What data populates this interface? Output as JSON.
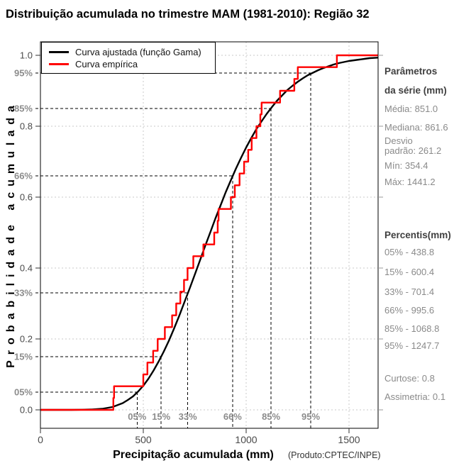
{
  "title": "Distribuição acumulada no trimestre MAM (1981-2010): Região 32",
  "footer_note": "(Produto:CPTEC/INPE)",
  "legend": {
    "items": [
      {
        "label": "Curva ajustada (função Gama)",
        "color": "#000000"
      },
      {
        "label": "Curva empírica",
        "color": "#ff0000"
      }
    ]
  },
  "sidebar": {
    "params_heading_line1": "Parâmetros",
    "params_heading_line2": "da série (mm)",
    "stats": {
      "media": "Média: 851.0",
      "mediana": "Mediana: 861.6",
      "desvio_line1": "Desvio",
      "desvio_line2": "padrão: 261.2",
      "min": "Mín: 354.4",
      "max": "Máx: 1441.2"
    },
    "percentis_heading": "Percentis(mm)",
    "percentis": [
      "05% - 438.8",
      "15% - 600.4",
      "33% - 701.4",
      "66% - 995.6",
      "85% - 1068.8",
      "95% - 1247.7"
    ],
    "curtose": "Curtose: 0.8",
    "assimetria": "Assimetria: 0.1"
  },
  "chart_data": {
    "type": "line",
    "title": "Distribuição acumulada no trimestre MAM (1981-2010): Região 32",
    "xlabel": "Precipitação acumulada (mm)",
    "ylabel": "Probabilidade acumulada",
    "xlim": [
      0,
      1645
    ],
    "ylim": [
      0,
      1.0
    ],
    "x_ticks": [
      0,
      500,
      1000,
      1500
    ],
    "y_ticks": [
      0.0,
      0.2,
      0.4,
      0.6,
      0.8,
      1.0
    ],
    "grid": true,
    "legend_position": "top-left",
    "series": [
      {
        "name": "Curva ajustada (função Gama)",
        "type": "smooth_cdf",
        "color": "#000000",
        "points": [
          [
            0,
            0
          ],
          [
            150,
            0.0001
          ],
          [
            200,
            0.0005
          ],
          [
            250,
            0.0013
          ],
          [
            300,
            0.003
          ],
          [
            350,
            0.008
          ],
          [
            400,
            0.019
          ],
          [
            425,
            0.028
          ],
          [
            450,
            0.038
          ],
          [
            475,
            0.052
          ],
          [
            500,
            0.068
          ],
          [
            525,
            0.088
          ],
          [
            550,
            0.111
          ],
          [
            575,
            0.137
          ],
          [
            600,
            0.165
          ],
          [
            625,
            0.196
          ],
          [
            650,
            0.23
          ],
          [
            675,
            0.266
          ],
          [
            700,
            0.304
          ],
          [
            725,
            0.342
          ],
          [
            750,
            0.381
          ],
          [
            775,
            0.421
          ],
          [
            800,
            0.461
          ],
          [
            825,
            0.5
          ],
          [
            850,
            0.539
          ],
          [
            875,
            0.576
          ],
          [
            900,
            0.613
          ],
          [
            925,
            0.647
          ],
          [
            950,
            0.68
          ],
          [
            975,
            0.711
          ],
          [
            1000,
            0.74
          ],
          [
            1025,
            0.767
          ],
          [
            1050,
            0.792
          ],
          [
            1075,
            0.814
          ],
          [
            1100,
            0.835
          ],
          [
            1125,
            0.854
          ],
          [
            1150,
            0.872
          ],
          [
            1175,
            0.887
          ],
          [
            1200,
            0.902
          ],
          [
            1225,
            0.914
          ],
          [
            1250,
            0.925
          ],
          [
            1275,
            0.935
          ],
          [
            1300,
            0.944
          ],
          [
            1325,
            0.951
          ],
          [
            1350,
            0.958
          ],
          [
            1375,
            0.964
          ],
          [
            1400,
            0.969
          ],
          [
            1425,
            0.974
          ],
          [
            1450,
            0.978
          ],
          [
            1475,
            0.981
          ],
          [
            1500,
            0.984
          ],
          [
            1525,
            0.986
          ],
          [
            1550,
            0.988
          ],
          [
            1575,
            0.99
          ],
          [
            1600,
            0.992
          ],
          [
            1640,
            0.9935
          ]
        ]
      },
      {
        "name": "Curva empírica",
        "type": "ecdf_steps",
        "color": "#ff0000",
        "n": 30,
        "sorted_values_mm": [
          354.4,
          358,
          500,
          520,
          548,
          570,
          605,
          640,
          660,
          680,
          698,
          715,
          743,
          792,
          845,
          861.6,
          866,
          926,
          945,
          968,
          990,
          1010,
          1027,
          1050,
          1068.8,
          1075,
          1165,
          1234,
          1251,
          1441.2
        ]
      }
    ],
    "percentile_markers": [
      {
        "label": "05%",
        "prob": 0.05,
        "value_mm": 438.8,
        "fitted_x_mm": 470
      },
      {
        "label": "15%",
        "prob": 0.15,
        "value_mm": 600.4,
        "fitted_x_mm": 587
      },
      {
        "label": "33%",
        "prob": 0.33,
        "value_mm": 701.4,
        "fitted_x_mm": 716
      },
      {
        "label": "66%",
        "prob": 0.66,
        "value_mm": 995.6,
        "fitted_x_mm": 934
      },
      {
        "label": "85%",
        "prob": 0.85,
        "value_mm": 1068.8,
        "fitted_x_mm": 1121
      },
      {
        "label": "95%",
        "prob": 0.95,
        "value_mm": 1247.7,
        "fitted_x_mm": 1314
      }
    ],
    "colors": {
      "grid": "#c9c9c9",
      "dashed_marker": "#000000",
      "axis": "#000000",
      "tick_label": "#4a4a4a",
      "pct_label": "#8c8c8c"
    }
  }
}
